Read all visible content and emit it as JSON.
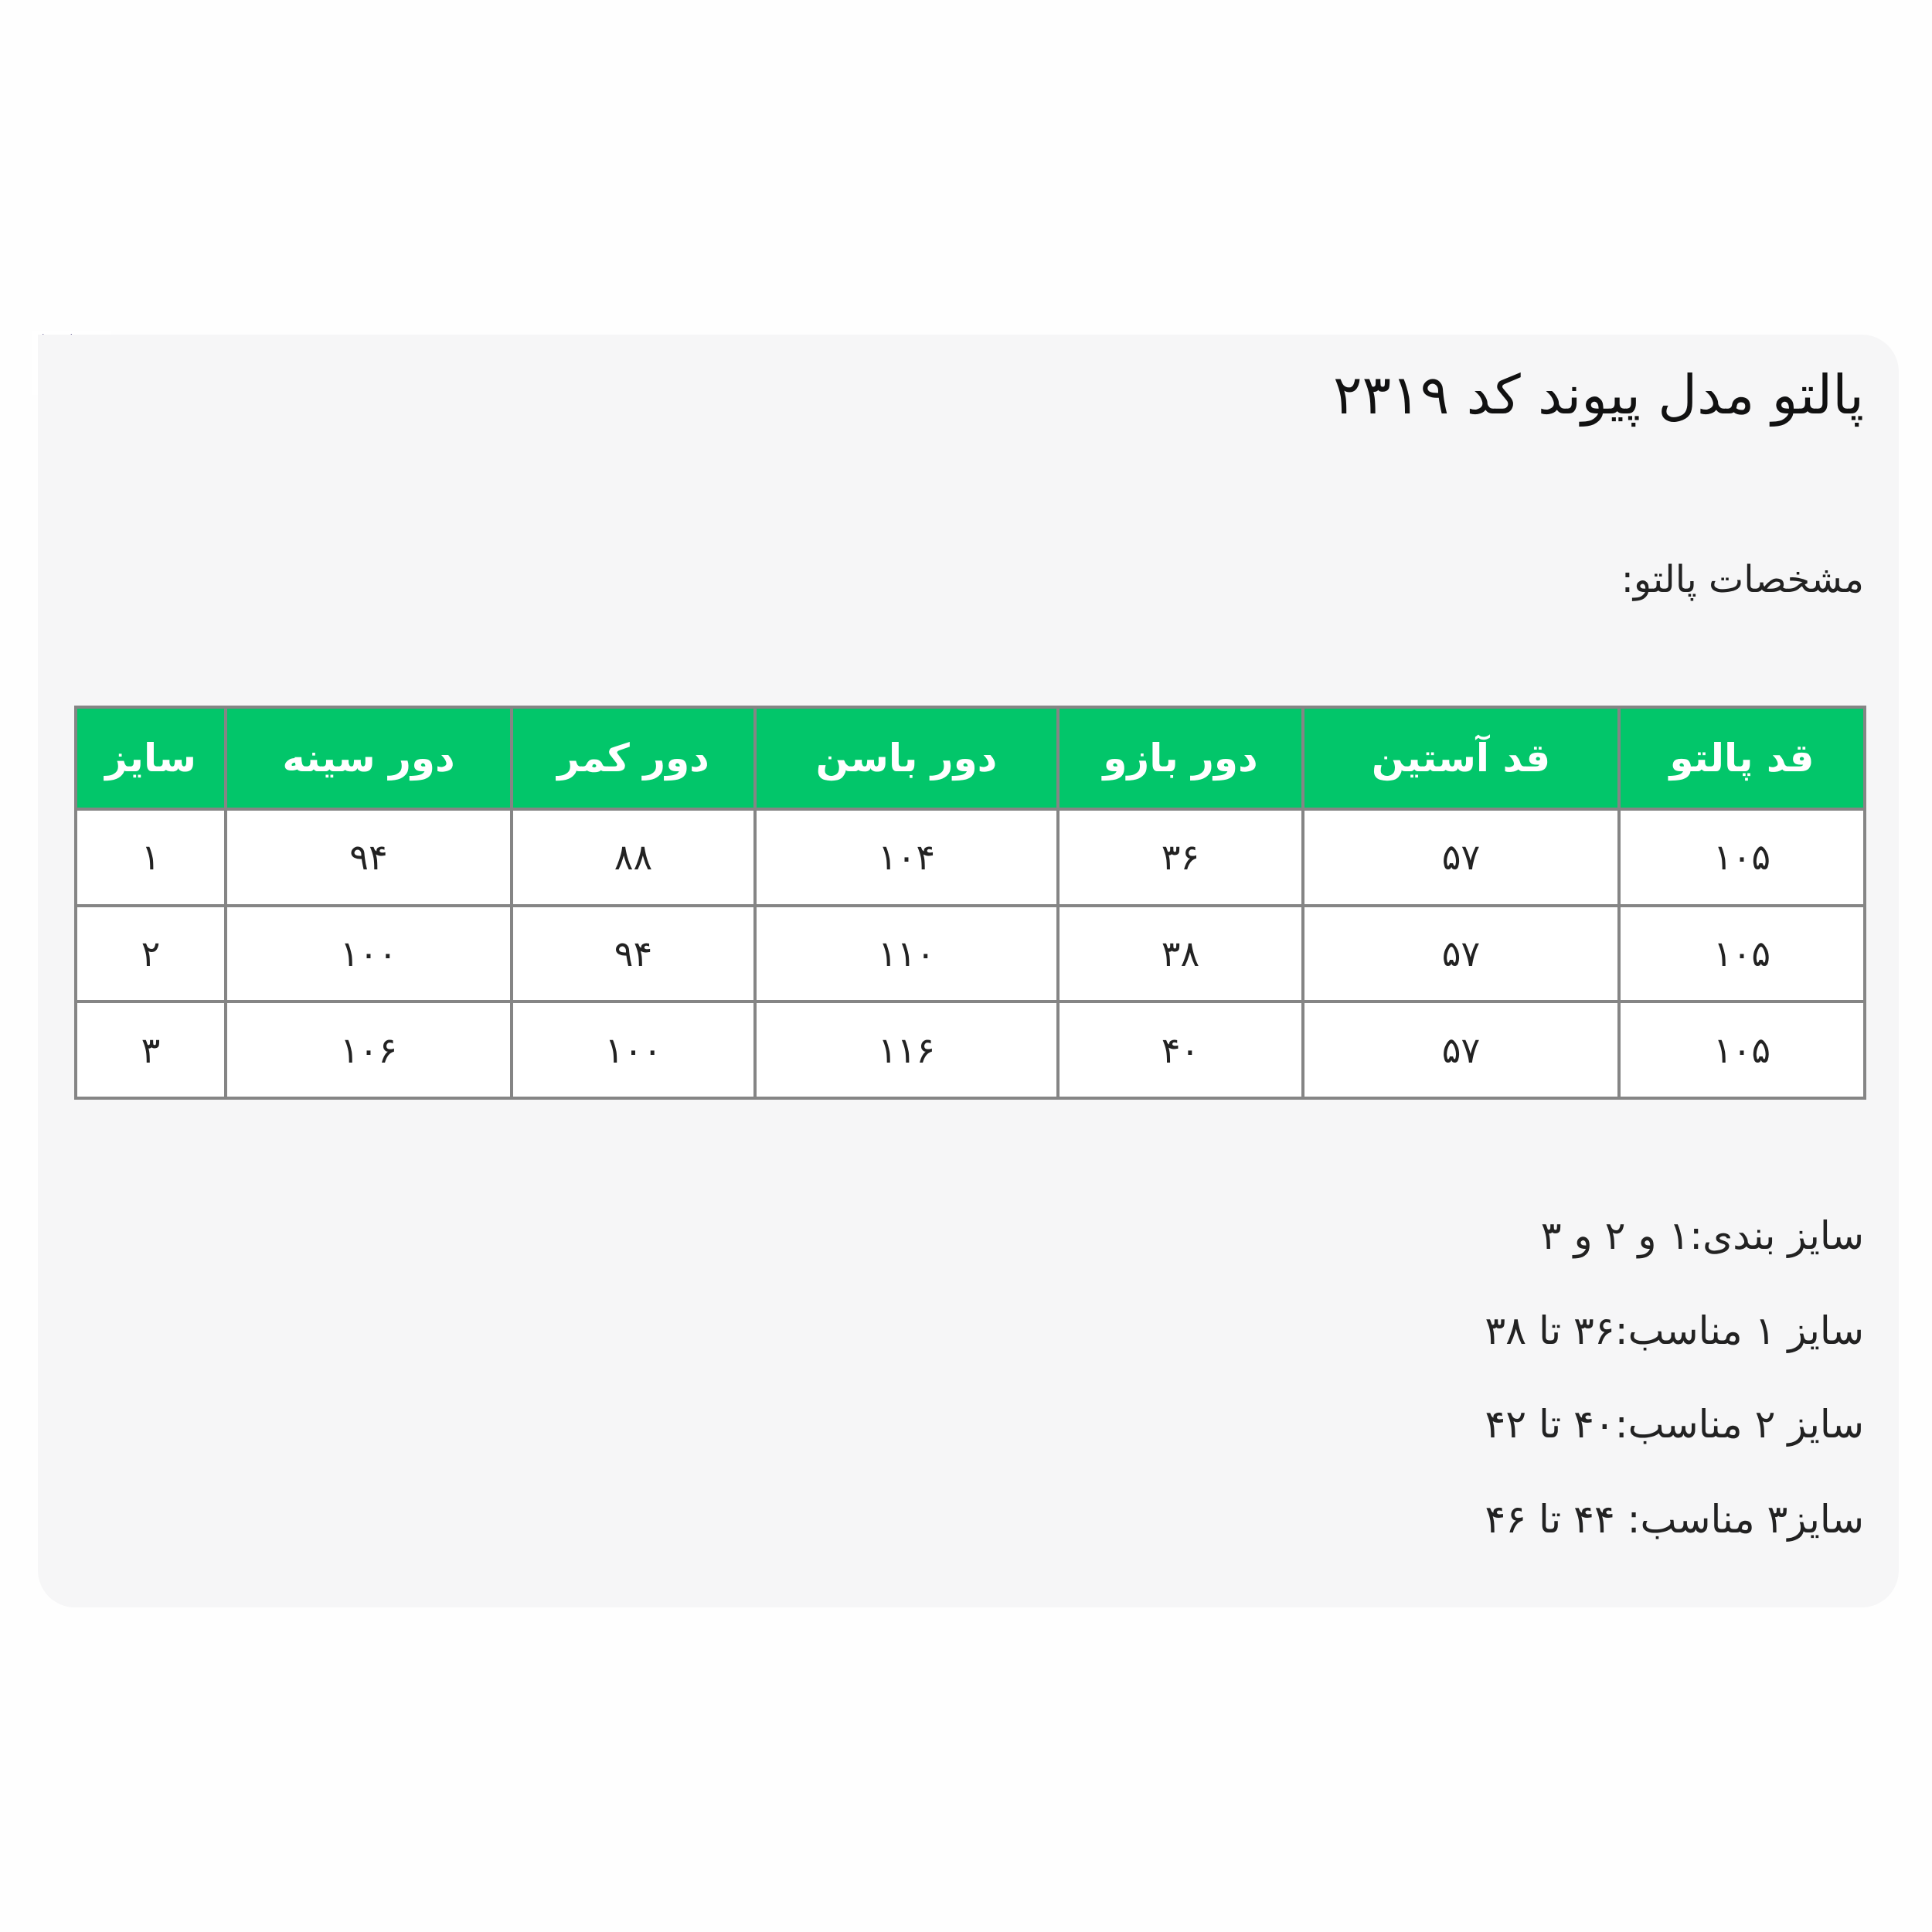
{
  "close_icon": "close-icon",
  "title": "پالتو مدل پیوند کد ۲۳۱۹",
  "subtitle": "مشخصات پالتو:",
  "table": {
    "header_color": "#02c66a",
    "headers": [
      "قد پالتو",
      "قد آستین",
      "دور بازو",
      "دور باسن",
      "دور کمر",
      "دور سینه",
      "سایز"
    ],
    "rows": [
      [
        "۱۰۵",
        "۵۷",
        "۳۶",
        "۱۰۴",
        "۸۸",
        "۹۴",
        "۱"
      ],
      [
        "۱۰۵",
        "۵۷",
        "۳۸",
        "۱۱۰",
        "۹۴",
        "۱۰۰",
        "۲"
      ],
      [
        "۱۰۵",
        "۵۷",
        "۴۰",
        "۱۱۶",
        "۱۰۰",
        "۱۰۶",
        "۳"
      ]
    ]
  },
  "notes": [
    "سایز بندی:۱ و ۲ و ۳",
    "سایز ۱ مناسب:۳۶ تا ۳۸",
    "سایز ۲ مناسب:۴۰ تا ۴۲",
    "سایز۳ مناسب: ۴۴ تا ۴۶"
  ]
}
